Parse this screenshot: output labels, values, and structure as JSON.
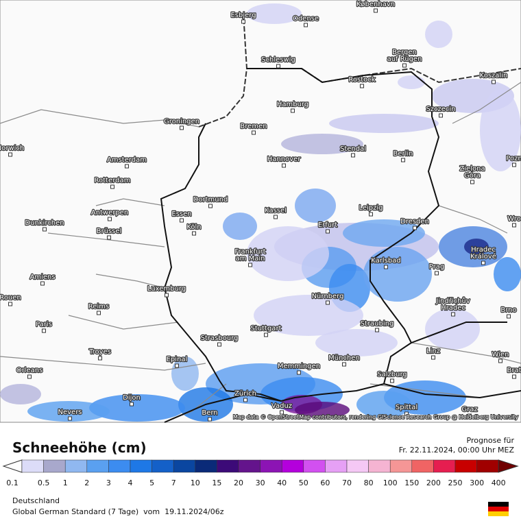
{
  "map": {
    "cities": [
      [
        "Esbjerg"
      ],
      [
        "København"
      ],
      [
        "Odense"
      ],
      [
        "Schleswig"
      ],
      [
        "Bergen",
        "auf Rügen"
      ],
      [
        "Koszalin"
      ],
      [
        "Rostock"
      ],
      [
        "Hamburg"
      ],
      [
        "Szczecin"
      ],
      [
        "Bremen"
      ],
      [
        "Groningen"
      ],
      [
        "Norwich"
      ],
      [
        "Stendal"
      ],
      [
        "Berlin"
      ],
      [
        "Pozn"
      ],
      [
        "Amsterdam"
      ],
      [
        "Hannover"
      ],
      [
        "Zielona",
        "Góra"
      ],
      [
        "Rotterdam"
      ],
      [
        "Dortmund"
      ],
      [
        "Leipzig"
      ],
      [
        "Kassel"
      ],
      [
        "Antwerpen"
      ],
      [
        "Essen"
      ],
      [
        "Wro"
      ],
      [
        "Dunkirchen"
      ],
      [
        "Erfurt"
      ],
      [
        "Dresden"
      ],
      [
        "Köln"
      ],
      [
        "Brüssel"
      ],
      [
        "Hradec",
        "Králové"
      ],
      [
        "Frankfurt",
        "am Main"
      ],
      [
        "Karlsbad"
      ],
      [
        "Amiens"
      ],
      [
        "Prag"
      ],
      [
        "Luxemburg"
      ],
      [
        "Rouen"
      ],
      [
        "Nürnberg"
      ],
      [
        "Jindřichův",
        "Hradec"
      ],
      [
        "Brno"
      ],
      [
        "Reims"
      ],
      [
        "Straubing"
      ],
      [
        "Paris"
      ],
      [
        "Stuttgart"
      ],
      [
        "Strasbourg"
      ],
      [
        "Troyes"
      ],
      [
        "Linz"
      ],
      [
        "Wien"
      ],
      [
        "München"
      ],
      [
        "Epinal"
      ],
      [
        "Brat"
      ],
      [
        "Orleans"
      ],
      [
        "Memmingen"
      ],
      [
        "Salzburg"
      ],
      [
        "Zürich"
      ],
      [
        "Dijon"
      ],
      [
        "Vaduz"
      ],
      [
        "Spittal"
      ],
      [
        "Nevers"
      ],
      [
        "Bern"
      ],
      [
        "Graz"
      ]
    ],
    "attribution": "Map data © OpenStreetMap contributors, rendering GIScience Research Group @ Heidelberg University"
  },
  "legend": {
    "title": "Schneehöhe (cm)",
    "forecast_label": "Prognose für",
    "forecast_time": "Fr. 22.11.2024, 00:00 Uhr MEZ",
    "scale_labels": [
      "0.1",
      "0.5",
      "1",
      "2",
      "3",
      "4",
      "5",
      "7",
      "10",
      "15",
      "20",
      "30",
      "40",
      "50",
      "60",
      "70",
      "80",
      "100",
      "150",
      "200",
      "250",
      "300",
      "400"
    ]
  },
  "footer": {
    "region": "Deutschland",
    "model": "Global German Standard (7 Tage)  vom  19.11.2024/06z"
  }
}
